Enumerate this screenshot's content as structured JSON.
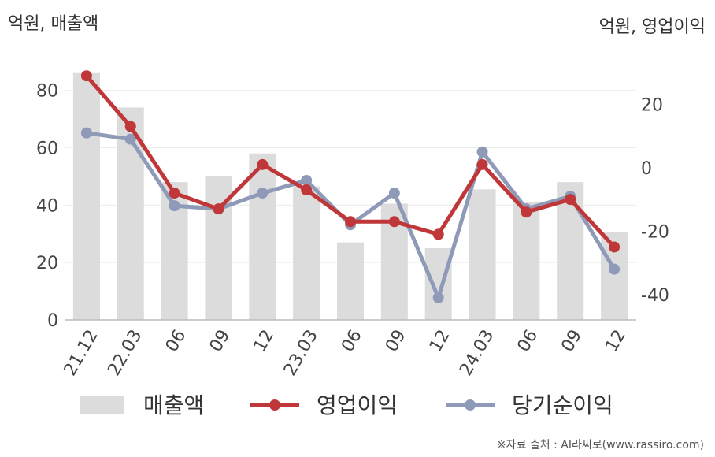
{
  "header": {
    "left_unit": "억원, 매출액",
    "right_unit": "억원, 영업이익"
  },
  "source": "※자료 출처 : AI라씨로(www.rassiro.com)",
  "chart_data": {
    "type": "bar+line",
    "categories": [
      "21.12",
      "22.03",
      "06",
      "09",
      "12",
      "23.03",
      "06",
      "09",
      "12",
      "24.03",
      "06",
      "09",
      "12"
    ],
    "left_axis": {
      "ylim": [
        0,
        95
      ],
      "ticks": [
        0,
        20,
        40,
        60,
        80
      ]
    },
    "right_axis": {
      "ylim": [
        -48,
        38
      ],
      "ticks": [
        -40,
        -20,
        0,
        20
      ]
    },
    "series": [
      {
        "name": "매출액",
        "kind": "bar",
        "axis": "left",
        "color": "#dcdcdc",
        "values": [
          86,
          74,
          48,
          50,
          58,
          46.5,
          27,
          40.5,
          25,
          45.5,
          41,
          48,
          30.5
        ]
      },
      {
        "name": "영업이익",
        "kind": "line",
        "axis": "right",
        "color": "#c0373a",
        "values": [
          29,
          13,
          -8,
          -13,
          1,
          -7,
          -17,
          -17,
          -21,
          1,
          -14,
          -10,
          -25
        ]
      },
      {
        "name": "당기순이익",
        "kind": "line",
        "axis": "right",
        "color": "#8e9ab8",
        "values": [
          11,
          9,
          -12,
          -13,
          -8,
          -4,
          -18,
          -8,
          -41,
          5,
          -13,
          -9,
          -32
        ]
      }
    ]
  }
}
